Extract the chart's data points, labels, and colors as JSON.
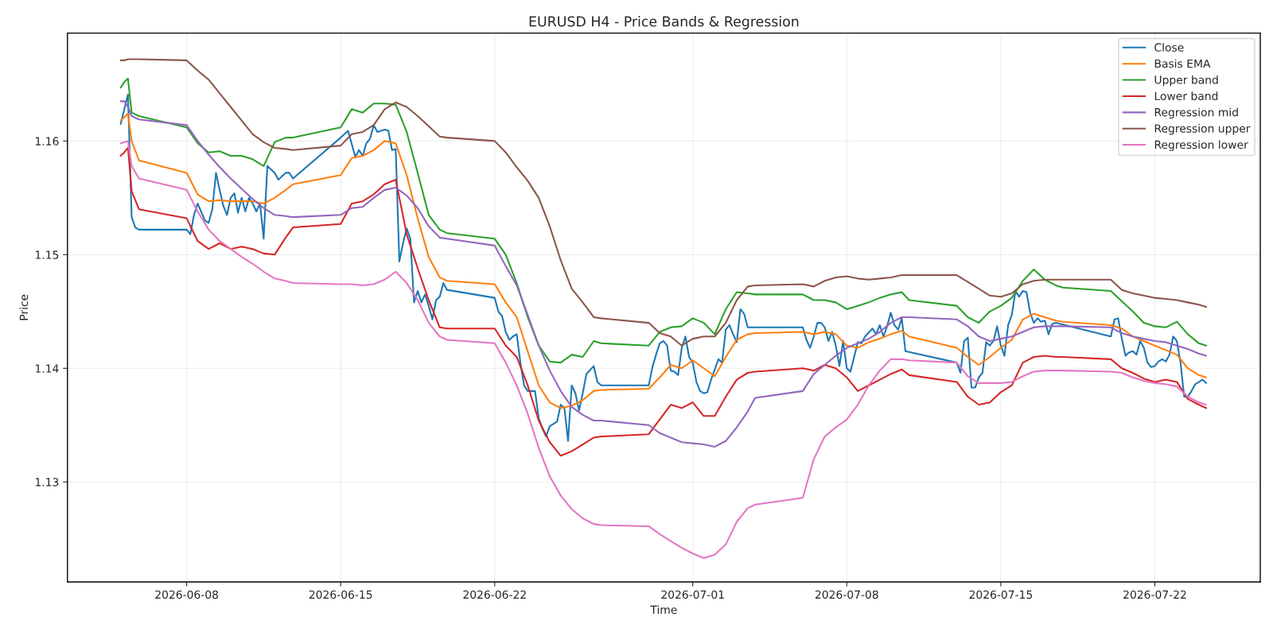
{
  "chart_data": {
    "type": "line",
    "title": "EURUSD H4 - Price Bands & Regression",
    "xlabel": "Time",
    "ylabel": "Price",
    "xlim": [
      "2026-06-02T14:00",
      "2026-07-26T19:00"
    ],
    "ylim": [
      1.1212,
      1.1695
    ],
    "xticks": [
      "2026-06-08",
      "2026-06-15",
      "2026-06-22",
      "2026-07-01",
      "2026-07-08",
      "2026-07-15",
      "2026-07-22"
    ],
    "yticks": [
      1.13,
      1.14,
      1.15,
      1.16
    ],
    "grid": true,
    "legend": "top right",
    "marker": "none",
    "line_style": "solid",
    "x": [
      "2026-06-05T00:00",
      "2026-06-05T04:00",
      "2026-06-05T08:00",
      "2026-06-05T12:00",
      "2026-06-05T20:00",
      "2026-06-08T00:00",
      "2026-06-08T12:00",
      "2026-06-09T00:00",
      "2026-06-09T12:00",
      "2026-06-10T00:00",
      "2026-06-10T12:00",
      "2026-06-11T00:00",
      "2026-06-11T12:00",
      "2026-06-12T00:00",
      "2026-06-12T12:00",
      "2026-06-12T20:00",
      "2026-06-15T00:00",
      "2026-06-15T12:00",
      "2026-06-16T00:00",
      "2026-06-16T12:00",
      "2026-06-17T00:00",
      "2026-06-17T12:00",
      "2026-06-18T00:00",
      "2026-06-18T12:00",
      "2026-06-19T00:00",
      "2026-06-19T12:00",
      "2026-06-19T20:00",
      "2026-06-22T00:00",
      "2026-06-22T12:00",
      "2026-06-23T00:00",
      "2026-06-23T12:00",
      "2026-06-24T00:00",
      "2026-06-24T12:00",
      "2026-06-25T00:00",
      "2026-06-25T12:00",
      "2026-06-26T00:00",
      "2026-06-26T12:00",
      "2026-06-26T20:00",
      "2026-06-29T00:00",
      "2026-06-29T12:00",
      "2026-06-30T00:00",
      "2026-06-30T12:00",
      "2026-07-01T00:00",
      "2026-07-01T12:00",
      "2026-07-02T00:00",
      "2026-07-02T12:00",
      "2026-07-03T00:00",
      "2026-07-03T12:00",
      "2026-07-03T20:00",
      "2026-07-06T00:00",
      "2026-07-06T12:00",
      "2026-07-07T00:00",
      "2026-07-07T12:00",
      "2026-07-08T00:00",
      "2026-07-08T12:00",
      "2026-07-09T00:00",
      "2026-07-09T12:00",
      "2026-07-10T00:00",
      "2026-07-10T12:00",
      "2026-07-10T20:00",
      "2026-07-13T00:00",
      "2026-07-13T12:00",
      "2026-07-14T00:00",
      "2026-07-14T12:00",
      "2026-07-15T00:00",
      "2026-07-15T12:00",
      "2026-07-16T00:00",
      "2026-07-16T12:00",
      "2026-07-17T00:00",
      "2026-07-17T12:00",
      "2026-07-17T20:00",
      "2026-07-20T00:00",
      "2026-07-20T12:00",
      "2026-07-21T00:00",
      "2026-07-21T12:00",
      "2026-07-22T00:00",
      "2026-07-22T12:00",
      "2026-07-23T00:00",
      "2026-07-23T12:00",
      "2026-07-24T00:00",
      "2026-07-24T08:00"
    ],
    "series": [
      {
        "name": "Close",
        "color": "#1f77b4",
        "x": [
          "2026-06-05T00:00",
          "2026-06-05T08:00",
          "2026-06-05T12:00",
          "2026-06-05T16:00",
          "2026-06-05T20:00",
          "2026-06-08T00:00",
          "2026-06-08T04:00",
          "2026-06-08T08:00",
          "2026-06-08T12:00",
          "2026-06-08T20:00",
          "2026-06-09T00:00",
          "2026-06-09T04:00",
          "2026-06-09T08:00",
          "2026-06-09T12:00",
          "2026-06-09T16:00",
          "2026-06-09T20:00",
          "2026-06-10T00:00",
          "2026-06-10T04:00",
          "2026-06-10T08:00",
          "2026-06-10T12:00",
          "2026-06-10T16:00",
          "2026-06-10T20:00",
          "2026-06-11T00:00",
          "2026-06-11T04:00",
          "2026-06-11T08:00",
          "2026-06-11T12:00",
          "2026-06-11T16:00",
          "2026-06-12T00:00",
          "2026-06-12T04:00",
          "2026-06-12T12:00",
          "2026-06-12T16:00",
          "2026-06-12T20:00",
          "2026-06-15T00:00",
          "2026-06-15T08:00",
          "2026-06-15T16:00",
          "2026-06-15T20:00",
          "2026-06-16T00:00",
          "2026-06-16T04:00",
          "2026-06-16T08:00",
          "2026-06-16T12:00",
          "2026-06-16T16:00",
          "2026-06-17T00:00",
          "2026-06-17T04:00",
          "2026-06-17T08:00",
          "2026-06-17T12:00",
          "2026-06-17T16:00",
          "2026-06-17T20:00",
          "2026-06-18T00:00",
          "2026-06-18T04:00",
          "2026-06-18T08:00",
          "2026-06-18T12:00",
          "2026-06-18T16:00",
          "2026-06-18T20:00",
          "2026-06-19T00:00",
          "2026-06-19T04:00",
          "2026-06-19T08:00",
          "2026-06-19T12:00",
          "2026-06-19T16:00",
          "2026-06-19T20:00",
          "2026-06-22T00:00",
          "2026-06-22T04:00",
          "2026-06-22T08:00",
          "2026-06-22T12:00",
          "2026-06-22T16:00",
          "2026-06-22T20:00",
          "2026-06-23T00:00",
          "2026-06-23T04:00",
          "2026-06-23T08:00",
          "2026-06-23T12:00",
          "2026-06-23T20:00",
          "2026-06-24T00:00",
          "2026-06-24T04:00",
          "2026-06-24T08:00",
          "2026-06-24T12:00",
          "2026-06-24T20:00",
          "2026-06-25T00:00",
          "2026-06-25T04:00",
          "2026-06-25T08:00",
          "2026-06-25T12:00",
          "2026-06-25T16:00",
          "2026-06-25T20:00",
          "2026-06-26T00:00",
          "2026-06-26T04:00",
          "2026-06-26T12:00",
          "2026-06-26T16:00",
          "2026-06-26T20:00",
          "2026-06-29T00:00",
          "2026-06-29T04:00",
          "2026-06-29T08:00",
          "2026-06-29T12:00",
          "2026-06-29T16:00",
          "2026-06-29T20:00",
          "2026-06-30T00:00",
          "2026-06-30T04:00",
          "2026-06-30T08:00",
          "2026-06-30T12:00",
          "2026-06-30T16:00",
          "2026-06-30T20:00",
          "2026-07-01T00:00",
          "2026-07-01T04:00",
          "2026-07-01T08:00",
          "2026-07-01T12:00",
          "2026-07-01T16:00",
          "2026-07-01T20:00",
          "2026-07-02T04:00",
          "2026-07-02T08:00",
          "2026-07-02T12:00",
          "2026-07-02T16:00",
          "2026-07-02T20:00",
          "2026-07-03T00:00",
          "2026-07-03T04:00",
          "2026-07-03T08:00",
          "2026-07-03T12:00",
          "2026-07-03T20:00",
          "2026-07-06T00:00",
          "2026-07-06T04:00",
          "2026-07-06T08:00",
          "2026-07-06T12:00",
          "2026-07-06T16:00",
          "2026-07-06T20:00",
          "2026-07-07T00:00",
          "2026-07-07T04:00",
          "2026-07-07T08:00",
          "2026-07-07T12:00",
          "2026-07-07T16:00",
          "2026-07-07T20:00",
          "2026-07-08T00:00",
          "2026-07-08T04:00",
          "2026-07-08T12:00",
          "2026-07-08T16:00",
          "2026-07-08T20:00",
          "2026-07-09T04:00",
          "2026-07-09T08:00",
          "2026-07-09T12:00",
          "2026-07-09T16:00",
          "2026-07-09T20:00",
          "2026-07-10T00:00",
          "2026-07-10T04:00",
          "2026-07-10T08:00",
          "2026-07-10T12:00",
          "2026-07-10T16:00",
          "2026-07-13T00:00",
          "2026-07-13T04:00",
          "2026-07-13T08:00",
          "2026-07-13T12:00",
          "2026-07-13T16:00",
          "2026-07-13T20:00",
          "2026-07-14T00:00",
          "2026-07-14T04:00",
          "2026-07-14T08:00",
          "2026-07-14T12:00",
          "2026-07-14T16:00",
          "2026-07-14T20:00",
          "2026-07-15T00:00",
          "2026-07-15T04:00",
          "2026-07-15T08:00",
          "2026-07-15T12:00",
          "2026-07-15T16:00",
          "2026-07-15T20:00",
          "2026-07-16T00:00",
          "2026-07-16T04:00",
          "2026-07-16T08:00",
          "2026-07-16T12:00",
          "2026-07-16T16:00",
          "2026-07-16T20:00",
          "2026-07-17T00:00",
          "2026-07-17T04:00",
          "2026-07-17T08:00",
          "2026-07-17T12:00",
          "2026-07-20T00:00",
          "2026-07-20T04:00",
          "2026-07-20T08:00",
          "2026-07-20T12:00",
          "2026-07-20T16:00",
          "2026-07-20T20:00",
          "2026-07-21T00:00",
          "2026-07-21T04:00",
          "2026-07-21T08:00",
          "2026-07-21T12:00",
          "2026-07-21T16:00",
          "2026-07-21T20:00",
          "2026-07-22T00:00",
          "2026-07-22T04:00",
          "2026-07-22T08:00",
          "2026-07-22T12:00",
          "2026-07-22T16:00",
          "2026-07-22T20:00",
          "2026-07-23T00:00",
          "2026-07-23T04:00",
          "2026-07-23T08:00",
          "2026-07-23T12:00",
          "2026-07-23T16:00",
          "2026-07-23T20:00",
          "2026-07-24T04:00",
          "2026-07-24T08:00"
        ],
        "values": [
          1.1615,
          1.1641,
          1.1533,
          1.1524,
          1.1522,
          1.1522,
          1.1518,
          1.1535,
          1.1545,
          1.153,
          1.1528,
          1.154,
          1.1572,
          1.1557,
          1.1543,
          1.1535,
          1.155,
          1.1554,
          1.1537,
          1.155,
          1.1538,
          1.155,
          1.1545,
          1.1538,
          1.1545,
          1.1514,
          1.1578,
          1.1572,
          1.1566,
          1.1572,
          1.1572,
          1.1567,
          1.1603,
          1.1609,
          1.1586,
          1.1592,
          1.1587,
          1.1598,
          1.1602,
          1.1614,
          1.1608,
          1.161,
          1.1609,
          1.1592,
          1.1593,
          1.1494,
          1.151,
          1.1523,
          1.1514,
          1.1458,
          1.1468,
          1.1458,
          1.1465,
          1.1455,
          1.1443,
          1.146,
          1.1463,
          1.1475,
          1.1469,
          1.1462,
          1.145,
          1.1446,
          1.1432,
          1.1425,
          1.1428,
          1.143,
          1.1405,
          1.1385,
          1.138,
          1.138,
          1.1356,
          1.1347,
          1.134,
          1.1349,
          1.1353,
          1.1368,
          1.1365,
          1.1336,
          1.1385,
          1.1378,
          1.1363,
          1.1378,
          1.1395,
          1.1402,
          1.1388,
          1.1385,
          1.1385,
          1.1401,
          1.1412,
          1.1422,
          1.1424,
          1.142,
          1.1398,
          1.1397,
          1.1394,
          1.1418,
          1.1428,
          1.141,
          1.1405,
          1.1388,
          1.138,
          1.1378,
          1.1379,
          1.139,
          1.1408,
          1.1405,
          1.1434,
          1.1438,
          1.143,
          1.1423,
          1.1452,
          1.1448,
          1.1436,
          1.1436,
          1.1436,
          1.1425,
          1.1418,
          1.1428,
          1.144,
          1.144,
          1.1436,
          1.1424,
          1.1432,
          1.142,
          1.1402,
          1.1424,
          1.14,
          1.1397,
          1.1423,
          1.1422,
          1.1428,
          1.1435,
          1.143,
          1.1438,
          1.1428,
          1.1437,
          1.1449,
          1.1438,
          1.1434,
          1.1444,
          1.1415,
          1.1405,
          1.1396,
          1.1424,
          1.1427,
          1.1383,
          1.1383,
          1.1392,
          1.1396,
          1.1423,
          1.142,
          1.1424,
          1.1437,
          1.142,
          1.1411,
          1.1438,
          1.1447,
          1.1468,
          1.1463,
          1.1468,
          1.1467,
          1.1449,
          1.144,
          1.1444,
          1.1441,
          1.1442,
          1.143,
          1.1439,
          1.144,
          1.1428,
          1.1443,
          1.1444,
          1.1426,
          1.1411,
          1.1414,
          1.1415,
          1.1412,
          1.1424,
          1.1418,
          1.1405,
          1.1401,
          1.1402,
          1.1406,
          1.1408,
          1.1406,
          1.1412,
          1.1428,
          1.1424,
          1.1405,
          1.1375,
          1.1375,
          1.138,
          1.1386,
          1.139,
          1.1387
        ]
      },
      {
        "name": "Basis EMA",
        "color": "#ff7f0e",
        "values": [
          1.1618,
          1.1621,
          1.1624,
          1.16,
          1.1583,
          1.1572,
          1.1553,
          1.1547,
          1.1548,
          1.1547,
          1.1547,
          1.1547,
          1.1545,
          1.155,
          1.1557,
          1.1562,
          1.157,
          1.1585,
          1.1587,
          1.1592,
          1.16,
          1.1598,
          1.157,
          1.1532,
          1.1498,
          1.148,
          1.1477,
          1.1474,
          1.1458,
          1.1445,
          1.1415,
          1.1385,
          1.137,
          1.1365,
          1.1367,
          1.1372,
          1.138,
          1.1381,
          1.1382,
          1.1392,
          1.1403,
          1.14,
          1.1407,
          1.14,
          1.1393,
          1.141,
          1.1425,
          1.143,
          1.1431,
          1.1432,
          1.143,
          1.1432,
          1.143,
          1.142,
          1.1418,
          1.1423,
          1.1426,
          1.143,
          1.1433,
          1.1428,
          1.1418,
          1.141,
          1.1403,
          1.141,
          1.1418,
          1.1425,
          1.1443,
          1.1448,
          1.1445,
          1.1442,
          1.1441,
          1.1438,
          1.1435,
          1.1428,
          1.1424,
          1.142,
          1.1416,
          1.1412,
          1.14,
          1.1394,
          1.1392
        ]
      },
      {
        "name": "Upper band",
        "color": "#2ca02c",
        "values": [
          1.1647,
          1.1652,
          1.1655,
          1.1625,
          1.1622,
          1.1612,
          1.1598,
          1.159,
          1.1591,
          1.1587,
          1.1587,
          1.1584,
          1.1578,
          1.1599,
          1.1603,
          1.1603,
          1.1612,
          1.1628,
          1.1625,
          1.1633,
          1.1633,
          1.1632,
          1.1608,
          1.1572,
          1.1535,
          1.1522,
          1.1519,
          1.1514,
          1.15,
          1.1475,
          1.1445,
          1.142,
          1.1406,
          1.1405,
          1.1412,
          1.141,
          1.1424,
          1.1422,
          1.142,
          1.1432,
          1.1436,
          1.1437,
          1.1444,
          1.144,
          1.143,
          1.1452,
          1.1467,
          1.1466,
          1.1465,
          1.1465,
          1.146,
          1.146,
          1.1458,
          1.1452,
          1.1455,
          1.1458,
          1.1462,
          1.1465,
          1.1467,
          1.146,
          1.1455,
          1.1445,
          1.144,
          1.145,
          1.1455,
          1.1462,
          1.1477,
          1.1487,
          1.1478,
          1.1473,
          1.1471,
          1.1468,
          1.1459,
          1.145,
          1.144,
          1.1437,
          1.1436,
          1.1441,
          1.143,
          1.1422,
          1.142
        ]
      },
      {
        "name": "Lower band",
        "color": "#d62728",
        "values": [
          1.1587,
          1.159,
          1.1594,
          1.1556,
          1.154,
          1.1532,
          1.1512,
          1.1505,
          1.151,
          1.1505,
          1.1507,
          1.1505,
          1.1501,
          1.15,
          1.1515,
          1.1524,
          1.1527,
          1.1545,
          1.1547,
          1.1553,
          1.1562,
          1.1566,
          1.1518,
          1.1488,
          1.146,
          1.1436,
          1.1435,
          1.1435,
          1.142,
          1.141,
          1.1385,
          1.1354,
          1.1335,
          1.1323,
          1.1327,
          1.1333,
          1.1339,
          1.134,
          1.1342,
          1.1355,
          1.1368,
          1.1365,
          1.137,
          1.1358,
          1.1358,
          1.1375,
          1.139,
          1.1396,
          1.1397,
          1.14,
          1.1398,
          1.1403,
          1.14,
          1.1392,
          1.138,
          1.1385,
          1.139,
          1.1395,
          1.1399,
          1.1394,
          1.1388,
          1.1375,
          1.1368,
          1.137,
          1.1379,
          1.1385,
          1.1405,
          1.141,
          1.1411,
          1.141,
          1.141,
          1.1408,
          1.14,
          1.1396,
          1.1391,
          1.1388,
          1.139,
          1.1388,
          1.1373,
          1.1368,
          1.1365
        ]
      },
      {
        "name": "Regression mid",
        "color": "#9467bd",
        "values": [
          1.1635,
          1.1635,
          1.163,
          1.1622,
          1.1619,
          1.1614,
          1.16,
          1.1588,
          1.1577,
          1.1567,
          1.1558,
          1.1549,
          1.1541,
          1.1535,
          1.1534,
          1.1533,
          1.1535,
          1.1541,
          1.1542,
          1.155,
          1.1557,
          1.1559,
          1.1552,
          1.1541,
          1.1525,
          1.1515,
          1.1514,
          1.1508,
          1.149,
          1.1473,
          1.1447,
          1.142,
          1.1398,
          1.138,
          1.1366,
          1.1359,
          1.1354,
          1.1354,
          1.135,
          1.1343,
          1.1339,
          1.1335,
          1.1334,
          1.1333,
          1.1331,
          1.1336,
          1.1348,
          1.1362,
          1.1374,
          1.138,
          1.1395,
          1.1403,
          1.1411,
          1.1418,
          1.1422,
          1.1426,
          1.1432,
          1.144,
          1.1445,
          1.1445,
          1.1443,
          1.1437,
          1.1428,
          1.1424,
          1.1426,
          1.1428,
          1.1432,
          1.1436,
          1.1437,
          1.1437,
          1.1437,
          1.1436,
          1.1431,
          1.1428,
          1.1426,
          1.1424,
          1.1423,
          1.142,
          1.1417,
          1.1413,
          1.1411
        ]
      },
      {
        "name": "Regression upper",
        "color": "#8c564b",
        "values": [
          1.1671,
          1.1671,
          1.1672,
          1.1672,
          1.1672,
          1.1671,
          1.1662,
          1.1654,
          1.1642,
          1.163,
          1.1618,
          1.1606,
          1.1599,
          1.1594,
          1.1593,
          1.1592,
          1.1596,
          1.1606,
          1.1608,
          1.1614,
          1.1628,
          1.1634,
          1.163,
          1.1622,
          1.1613,
          1.1604,
          1.1603,
          1.16,
          1.159,
          1.1577,
          1.1565,
          1.155,
          1.1525,
          1.1495,
          1.147,
          1.1458,
          1.1445,
          1.1444,
          1.144,
          1.1431,
          1.1428,
          1.142,
          1.1426,
          1.1428,
          1.1428,
          1.144,
          1.146,
          1.1472,
          1.1473,
          1.1474,
          1.1472,
          1.1477,
          1.148,
          1.1481,
          1.1479,
          1.1478,
          1.1479,
          1.148,
          1.1482,
          1.1482,
          1.1482,
          1.1476,
          1.147,
          1.1464,
          1.1463,
          1.1466,
          1.1474,
          1.1477,
          1.1478,
          1.1478,
          1.1478,
          1.1478,
          1.1469,
          1.1466,
          1.1464,
          1.1462,
          1.1461,
          1.146,
          1.1458,
          1.1456,
          1.1454
        ]
      },
      {
        "name": "Regression lower",
        "color": "#e377c2",
        "values": [
          1.1598,
          1.1599,
          1.16,
          1.1578,
          1.1567,
          1.1557,
          1.1538,
          1.1522,
          1.1512,
          1.1505,
          1.1498,
          1.1492,
          1.1485,
          1.1479,
          1.1477,
          1.1475,
          1.1474,
          1.1474,
          1.1473,
          1.1474,
          1.1478,
          1.1485,
          1.1475,
          1.146,
          1.144,
          1.1428,
          1.1425,
          1.1422,
          1.1405,
          1.1385,
          1.136,
          1.133,
          1.1305,
          1.1288,
          1.1276,
          1.1268,
          1.1263,
          1.1262,
          1.1261,
          1.1254,
          1.1248,
          1.1242,
          1.1237,
          1.1233,
          1.1236,
          1.1245,
          1.1265,
          1.1277,
          1.128,
          1.1286,
          1.132,
          1.134,
          1.1348,
          1.1355,
          1.1368,
          1.1385,
          1.1398,
          1.1408,
          1.1408,
          1.1407,
          1.1405,
          1.1393,
          1.1387,
          1.1387,
          1.1387,
          1.1388,
          1.1393,
          1.1397,
          1.1398,
          1.1398,
          1.1398,
          1.1397,
          1.1396,
          1.1392,
          1.1389,
          1.1387,
          1.1386,
          1.1384,
          1.1375,
          1.137,
          1.1368
        ]
      }
    ]
  }
}
